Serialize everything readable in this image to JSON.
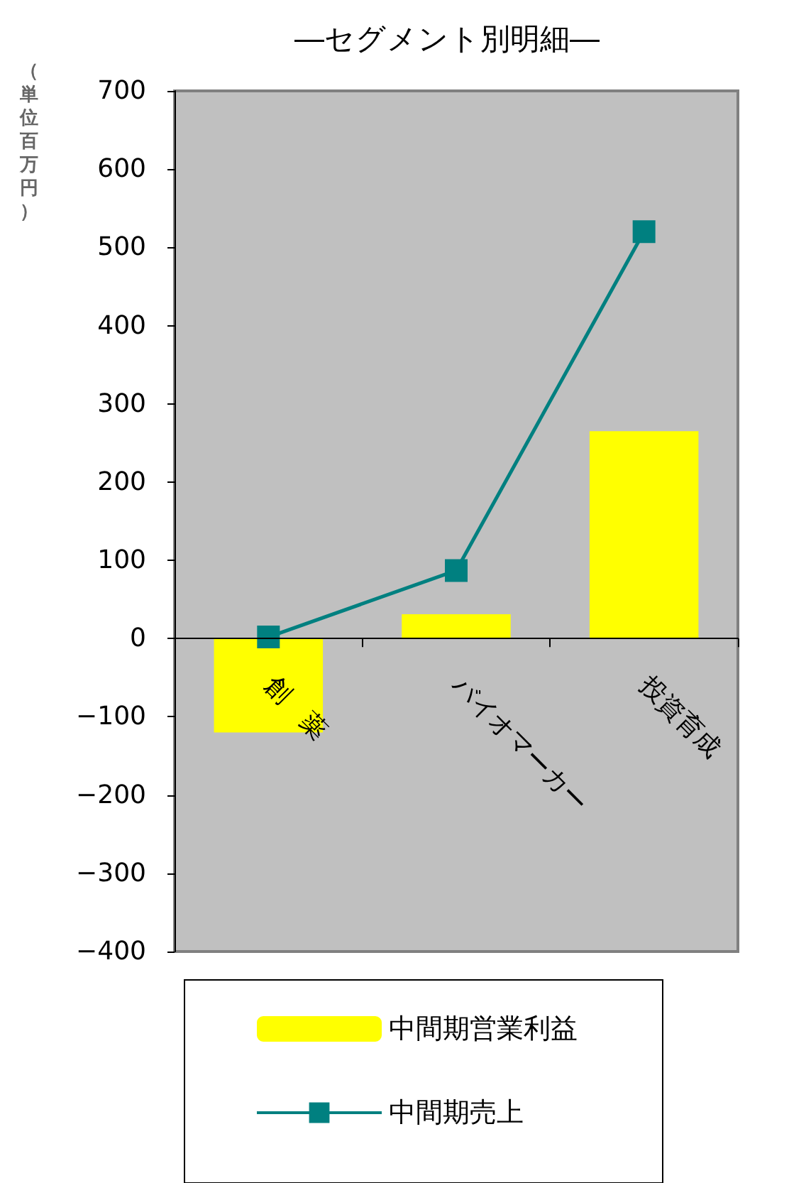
{
  "chart_data": {
    "type": "bar",
    "title": "―セグメント別明細―",
    "ylabel": "（単位百万円）",
    "categories": [
      "創　薬",
      "バイオマーカー",
      "投資育成"
    ],
    "series": [
      {
        "name": "中間期営業利益",
        "color": "#ffff00",
        "values": [
          -120,
          31,
          265
        ]
      },
      {
        "name": "中間期売上",
        "type": "line",
        "color": "#008080",
        "values": [
          2,
          87,
          520
        ]
      }
    ],
    "ylim": [
      -400,
      700
    ],
    "yticks": [
      -400,
      -300,
      -200,
      -100,
      0,
      100,
      200,
      300,
      400,
      500,
      600,
      700
    ],
    "grid": false,
    "legend": "bottom",
    "marker": "square",
    "line_style": "solid"
  }
}
